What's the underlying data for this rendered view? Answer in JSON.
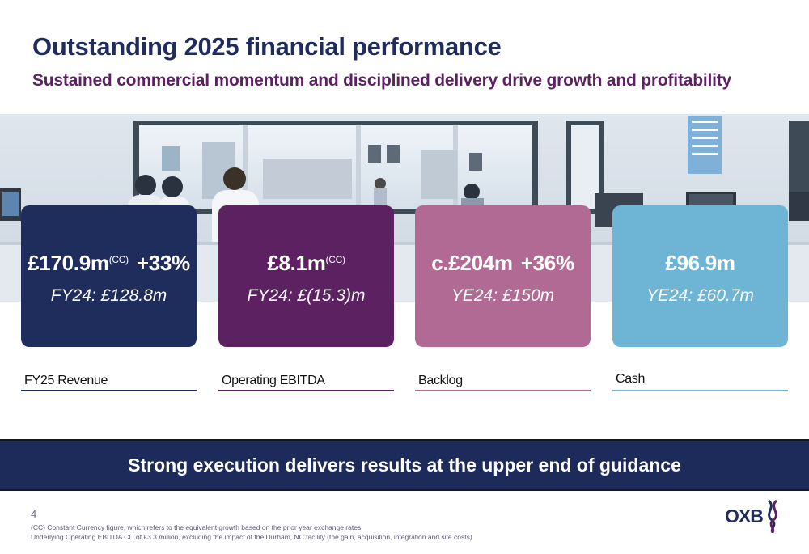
{
  "header": {
    "title": "Outstanding 2025 financial performance",
    "subtitle": "Sustained commercial momentum and disciplined delivery drive growth and profitability"
  },
  "photo": {
    "description_icon": "laboratory-photo"
  },
  "kpis": [
    {
      "value": "£170.9m",
      "superscript": "(CC)",
      "growth": "+33%",
      "prior": "FY24: £128.8m",
      "label": "FY25 Revenue",
      "color": "#1f2d5c",
      "line_color": "#1f2d5c"
    },
    {
      "value": "£8.1m",
      "superscript": "(CC)",
      "growth": "",
      "prior": "FY24: £(15.3)m",
      "label": "Operating EBITDA",
      "color": "#5c2161",
      "line_color": "#5c2161"
    },
    {
      "value": "c.£204m",
      "superscript": "",
      "growth": "+36%",
      "prior": "YE24: £150m",
      "label": "Backlog",
      "color": "#b06a93",
      "line_color": "#b06a93"
    },
    {
      "value": "£96.9m",
      "superscript": "",
      "growth": "",
      "prior": "YE24: £60.7m",
      "label": "Cash",
      "color": "#6db4d5",
      "line_color": "#6db4d5"
    }
  ],
  "banner": {
    "text": "Strong execution delivers results at the upper end of guidance"
  },
  "footer": {
    "page_number": "4",
    "note1": "(CC) Constant Currency figure, which refers to the equivalent growth based on the prior year exchange rates",
    "note2": "Underlying Operating EBITDA CC of £3.3 million, excluding the impact of the Durham, NC facility (the gain, acquisition, integration and site costs)",
    "logo_text": "OXB"
  }
}
